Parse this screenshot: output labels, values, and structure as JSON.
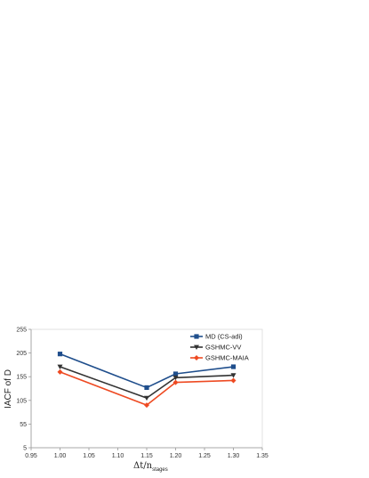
{
  "chart_data": {
    "type": "line",
    "title": "",
    "xlabel": "Δt/n",
    "xlabel_sub": "stages",
    "ylabel": "IACF of D",
    "xlim": [
      0.95,
      1.35
    ],
    "ylim": [
      5,
      255
    ],
    "x_ticks": [
      "0.95",
      "1.00",
      "1.05",
      "1.10",
      "1.15",
      "1.20",
      "1.25",
      "1.30",
      "1.35"
    ],
    "y_ticks": [
      "5",
      "55",
      "105",
      "155",
      "205",
      "255"
    ],
    "grid": false,
    "legend_position": "top-right",
    "x": [
      1.0,
      1.15,
      1.2,
      1.3
    ],
    "series": [
      {
        "name": "MD (CS-adi)",
        "values": [
          203,
          132,
          161,
          176
        ],
        "color": "#1f4e8c",
        "marker": "square"
      },
      {
        "name": "GSHMC-VV",
        "values": [
          176,
          110,
          153,
          158
        ],
        "color": "#333333",
        "marker": "triangle-down"
      },
      {
        "name": "GSHMC-MAIA",
        "values": [
          165,
          95,
          143,
          147
        ],
        "color": "#ee4a22",
        "marker": "diamond"
      }
    ]
  }
}
